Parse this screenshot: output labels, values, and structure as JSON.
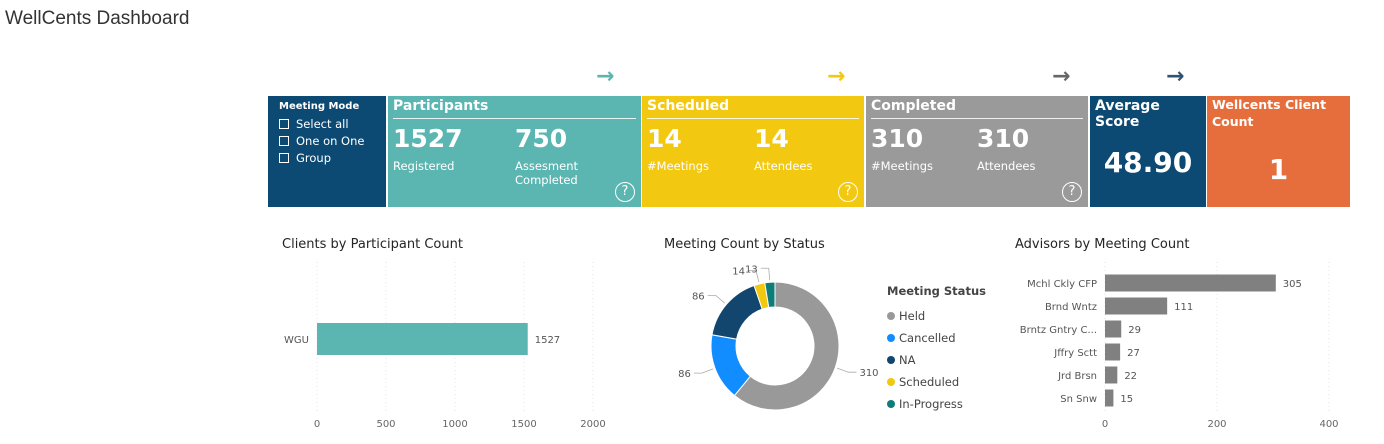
{
  "page": {
    "title": "WellCents Dashboard"
  },
  "arrows": [
    {
      "glyph": "→",
      "color": "#5BB6B2"
    },
    {
      "glyph": "→",
      "color": "#F2C811"
    },
    {
      "glyph": "→",
      "color": "#666666"
    },
    {
      "glyph": "→",
      "color": "#2F5374"
    }
  ],
  "meeting_mode": {
    "header": "Meeting Mode",
    "options": [
      "Select all",
      "One on One",
      "Group"
    ],
    "bg": "#0D4A73"
  },
  "cards": {
    "participants": {
      "title": "Participants",
      "bg": "#5BB6B2",
      "v1": "1527",
      "l1": "Registered",
      "v2": "750",
      "l2": "Assesment Completed",
      "help": "?"
    },
    "scheduled": {
      "title": "Scheduled",
      "bg": "#F2C811",
      "v1": "14",
      "l1": "#Meetings",
      "v2": "14",
      "l2": "Attendees",
      "help": "?"
    },
    "completed": {
      "title": "Completed",
      "bg": "#9B9A9B",
      "v1": "310",
      "l1": "#Meetings",
      "v2": "310",
      "l2": "Attendees",
      "help": "?"
    },
    "average": {
      "title": "Average Score",
      "value": "48.90",
      "bg": "#0D4A73"
    },
    "clients": {
      "title": "Wellcents Client Count",
      "value": "1",
      "bg": "#E56E3C"
    }
  },
  "chart_data": [
    {
      "type": "bar",
      "orientation": "horizontal",
      "title": "Clients by Participant Count",
      "categories": [
        "WGU"
      ],
      "values": [
        1527
      ],
      "xlim": [
        0,
        2000
      ],
      "xticks": [
        0,
        500,
        1000,
        1500,
        2000
      ],
      "color": "#5BB6B2",
      "grid": true
    },
    {
      "type": "pie",
      "donut": true,
      "title": "Meeting Count by Status",
      "legend_title": "Meeting Status",
      "legend_position": "right",
      "labels": [
        "Held",
        "Cancelled",
        "NA",
        "Scheduled",
        "In-Progress"
      ],
      "values": [
        310,
        86,
        86,
        14,
        13
      ],
      "colors": [
        "#999999",
        "#118DFF",
        "#12466F",
        "#F2C811",
        "#0E7D7A"
      ]
    },
    {
      "type": "bar",
      "orientation": "horizontal",
      "title": "Advisors by Meeting Count",
      "categories": [
        "Mchl Ckly CFP",
        "Brnd Wntz",
        "Brntz Gntry C...",
        "Jffry Sctt",
        "Jrd Brsn",
        "Sn Snw"
      ],
      "values": [
        305,
        111,
        29,
        27,
        22,
        15
      ],
      "xlim": [
        0,
        400
      ],
      "xticks": [
        0,
        200,
        400
      ],
      "color": "#808080",
      "grid": true
    }
  ]
}
